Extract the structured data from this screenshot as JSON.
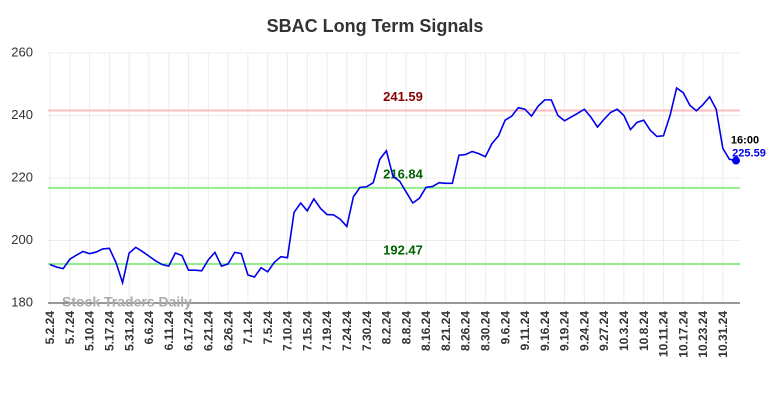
{
  "chart_data": {
    "type": "line",
    "title": "SBAC Long Term Signals",
    "categories": [
      "5.2.24",
      null,
      null,
      "5.7.24",
      null,
      null,
      "5.10.24",
      null,
      null,
      "5.17.24",
      null,
      null,
      "5.31.24",
      null,
      null,
      "6.6.24",
      null,
      null,
      "6.11.24",
      null,
      null,
      "6.17.24",
      null,
      null,
      "6.21.24",
      null,
      null,
      "6.26.24",
      null,
      null,
      "7.1.24",
      null,
      null,
      "7.5.24",
      null,
      null,
      "7.10.24",
      null,
      null,
      "7.15.24",
      null,
      null,
      "7.19.24",
      null,
      null,
      "7.24.24",
      null,
      null,
      "7.30.24",
      null,
      null,
      "8.2.24",
      null,
      null,
      "8.8.24",
      null,
      null,
      "8.16.24",
      null,
      null,
      "8.21.24",
      null,
      null,
      "8.26.24",
      null,
      null,
      "8.30.24",
      null,
      null,
      "9.6.24",
      null,
      null,
      "9.11.24",
      null,
      null,
      "9.16.24",
      null,
      null,
      "9.19.24",
      null,
      null,
      "9.24.24",
      null,
      null,
      "9.27.24",
      null,
      null,
      "10.3.24",
      null,
      null,
      "10.8.24",
      null,
      null,
      "10.11.24",
      null,
      null,
      "10.17.24",
      null,
      null,
      "10.23.24",
      null,
      null,
      "10.31.24",
      null,
      null
    ],
    "values": [
      192.3,
      191.5,
      191,
      194,
      195.3,
      196.5,
      195.8,
      196.3,
      197.3,
      197.5,
      193,
      186.5,
      196,
      197.8,
      196.5,
      195,
      193.5,
      192.3,
      191.8,
      196,
      195.2,
      190.5,
      190.5,
      190.3,
      193.8,
      196.2,
      191.8,
      192.5,
      196.2,
      195.8,
      189,
      188.3,
      191.3,
      190,
      193,
      194.8,
      194.5,
      209,
      212,
      209.5,
      213.3,
      210.3,
      208.3,
      208.2,
      206.8,
      204.5,
      214,
      217,
      217.2,
      218.5,
      226,
      228.7,
      220.5,
      219,
      215.5,
      212,
      213.5,
      217,
      217.3,
      218.5,
      218.3,
      218.3,
      227.3,
      227.5,
      228.5,
      227.8,
      226.8,
      231,
      233.5,
      238.5,
      239.8,
      242.5,
      242,
      239.8,
      243,
      245,
      245,
      240,
      238.3,
      239.5,
      240.7,
      242,
      239.5,
      236.3,
      238.8,
      241,
      242,
      240,
      235.5,
      237.8,
      238.5,
      235.3,
      233.3,
      233.5,
      240,
      248.8,
      247.3,
      243.3,
      241.5,
      243.5,
      246,
      242,
      229.5,
      226,
      225.59
    ],
    "color": "#0000ee",
    "ylim": [
      180,
      260
    ],
    "yticks": [
      180,
      200,
      220,
      240,
      260
    ],
    "grid": true,
    "hlines": [
      {
        "value": 241.59,
        "color": "#ffbcbc",
        "label_color": "#8b0000"
      },
      {
        "value": 216.84,
        "color": "#90ee90",
        "label_color": "#006400"
      },
      {
        "value": 192.47,
        "color": "#90ee90",
        "label_color": "#006400"
      }
    ],
    "last_time": "16:00",
    "watermark": "Stock Traders Daily"
  }
}
